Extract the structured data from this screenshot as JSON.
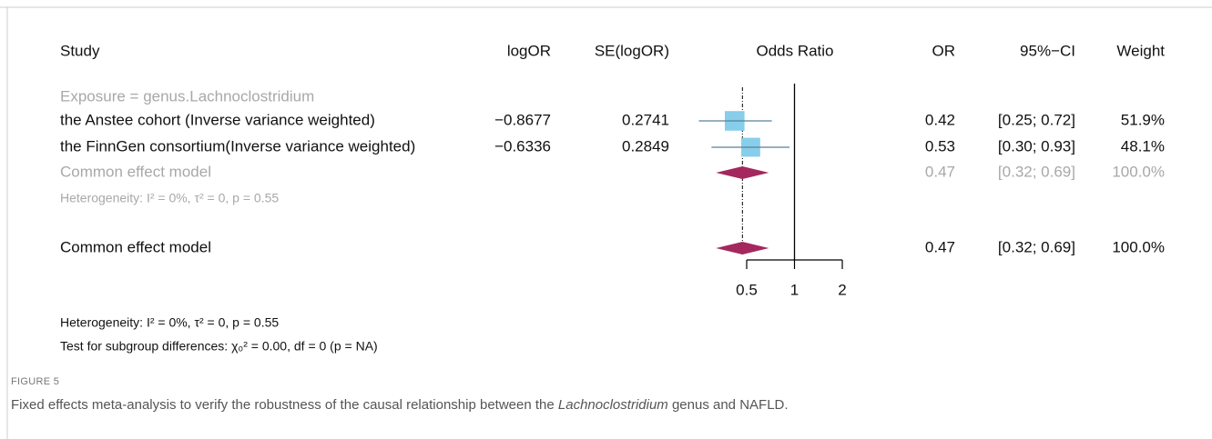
{
  "chart_data": {
    "type": "forest",
    "headers": {
      "study": "Study",
      "log_or": "logOR",
      "se": "SE(logOR)",
      "plot": "Odds Ratio",
      "or": "OR",
      "ci": "95%−CI",
      "weight": "Weight"
    },
    "subgroup": "Exposure = genus.Lachnoclostridium",
    "studies": [
      {
        "name": "the Anstee cohort (Inverse variance weighted)",
        "log_or": {
          "value": -0.8677,
          "label": "−0.8677"
        },
        "se": 0.2741,
        "or": 0.42,
        "ci": {
          "value": [
            0.25,
            0.72
          ],
          "label": "[0.25; 0.72]"
        },
        "weight": {
          "value": 51.9,
          "label": "51.9%"
        }
      },
      {
        "name": "the FinnGen consortium(Inverse variance weighted)",
        "log_or": {
          "value": -0.6336,
          "label": "−0.6336"
        },
        "se": 0.2849,
        "or": 0.53,
        "ci": {
          "value": [
            0.3,
            0.93
          ],
          "label": "[0.30; 0.93]"
        },
        "weight": {
          "value": 48.1,
          "label": "48.1%"
        }
      }
    ],
    "subgroup_model": {
      "name": "Common effect model",
      "or": 0.47,
      "ci": {
        "value": [
          0.32,
          0.69
        ],
        "label": "[0.32; 0.69]"
      },
      "weight": {
        "value": 100.0,
        "label": "100.0%"
      }
    },
    "subgroup_heterogeneity": "Heterogeneity: I² = 0%, τ² = 0, p = 0.55",
    "overall_model": {
      "name": "Common effect model",
      "or": 0.47,
      "ci": {
        "value": [
          0.32,
          0.69
        ],
        "label": "[0.32; 0.69]"
      },
      "weight": {
        "value": 100.0,
        "label": "100.0%"
      }
    },
    "heterogeneity": "Heterogeneity: I² = 0%, τ² = 0, p = 0.55",
    "subgroup_test": "Test for subgroup differences: χ₀² = 0.00, df = 0 (p = NA)",
    "xscale": "log",
    "xlim": [
      0.5,
      2
    ],
    "xticks": [
      0.5,
      1,
      2
    ],
    "reference_line": 1,
    "colors": {
      "square": "#87ceeb",
      "ci_line": "#5b7f96",
      "diamond": "#a4285e",
      "muted": "#a8a8a8"
    },
    "figure_label": "FIGURE 5",
    "caption": [
      "Fixed effects meta-analysis to verify the robustness of the causal relationship between the ",
      "Lachnoclostridium",
      " genus and NAFLD."
    ]
  }
}
